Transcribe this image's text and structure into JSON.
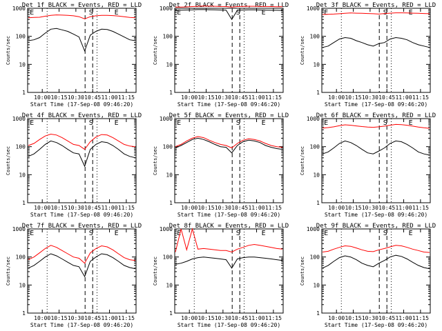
{
  "chart_data": [
    {
      "type": "line",
      "title": "Det 1f BLACK = Events, RED = LLD",
      "xlabel": "Start Time (17-Sep-08 09:46:20)",
      "ylabel": "Counts/sec",
      "yscale": "log",
      "ylim": [
        1,
        1000
      ],
      "xticks": [
        "10:00",
        "10:15",
        "10:30",
        "10:45",
        "11:00",
        "11:15"
      ],
      "markers": [
        "E",
        "S",
        "E"
      ],
      "series": [
        {
          "name": "Events",
          "color": "#000000",
          "values": [
            70,
            75,
            90,
            130,
            180,
            190,
            170,
            150,
            120,
            95,
            30,
            110,
            150,
            180,
            175,
            150,
            120,
            95,
            75,
            70
          ]
        },
        {
          "name": "LLD",
          "color": "#ff0000",
          "values": [
            460,
            470,
            480,
            520,
            560,
            580,
            570,
            560,
            540,
            500,
            420,
            500,
            540,
            560,
            560,
            550,
            530,
            500,
            470,
            460
          ]
        }
      ]
    },
    {
      "type": "line",
      "title": "Det 2f BLACK = Events, RED = LLD",
      "xlabel": "Start Time (17-Sep-08 09:46:20)",
      "ylabel": "Counts/sec",
      "yscale": "log",
      "ylim": [
        1,
        1000
      ],
      "xticks": [
        "10:00",
        "10:15",
        "10:30",
        "10:45",
        "11:00",
        "11:15"
      ],
      "markers": [
        "E",
        "S",
        "E"
      ],
      "series": [
        {
          "name": "Events",
          "color": "#000000",
          "values": [
            850,
            860,
            870,
            880,
            900,
            900,
            890,
            880,
            870,
            860,
            400,
            850,
            870,
            880,
            880,
            870,
            860,
            850,
            850,
            840
          ]
        },
        {
          "name": "LLD",
          "color": "#ff0000",
          "values": [
            1100,
            1110,
            1120,
            1150,
            1180,
            1200,
            1190,
            1180,
            1160,
            1150,
            1100,
            1150,
            1170,
            1180,
            1180,
            1170,
            1160,
            1150,
            1140,
            1130
          ]
        }
      ]
    },
    {
      "type": "line",
      "title": "Det 3f BLACK = Events, RED = LLD",
      "xlabel": "Start Time (17-Sep-08 09:46:20)",
      "ylabel": "Counts/sec",
      "yscale": "log",
      "ylim": [
        1,
        1000
      ],
      "xticks": [
        "10:00",
        "10:15",
        "10:30",
        "10:45",
        "11:00",
        "11:15"
      ],
      "markers": [
        "E",
        "S",
        "E"
      ],
      "series": [
        {
          "name": "Events",
          "color": "#000000",
          "values": [
            40,
            45,
            60,
            80,
            90,
            85,
            70,
            60,
            50,
            45,
            55,
            60,
            80,
            90,
            85,
            75,
            60,
            50,
            45,
            40
          ]
        },
        {
          "name": "LLD",
          "color": "#ff0000",
          "values": [
            600,
            610,
            620,
            640,
            660,
            680,
            670,
            660,
            650,
            640,
            620,
            650,
            670,
            690,
            690,
            680,
            670,
            660,
            650,
            640
          ]
        }
      ]
    },
    {
      "type": "line",
      "title": "Det 4f BLACK = Events, RED = LLD",
      "xlabel": "Start Time (17-Sep-08 09:46:20)",
      "ylabel": "Counts/sec",
      "yscale": "log",
      "ylim": [
        1,
        1000
      ],
      "xticks": [
        "10:00",
        "10:15",
        "10:30",
        "10:45",
        "11:00",
        "11:15"
      ],
      "markers": [
        "E",
        "S",
        "E"
      ],
      "series": [
        {
          "name": "Events",
          "color": "#000000",
          "values": [
            45,
            55,
            80,
            120,
            160,
            140,
            110,
            80,
            60,
            55,
            20,
            80,
            120,
            150,
            140,
            110,
            80,
            55,
            45,
            40
          ]
        },
        {
          "name": "LLD",
          "color": "#ff0000",
          "values": [
            110,
            130,
            180,
            240,
            280,
            260,
            210,
            160,
            120,
            110,
            80,
            150,
            220,
            270,
            260,
            210,
            160,
            120,
            105,
            100
          ]
        }
      ]
    },
    {
      "type": "line",
      "title": "Det 5f BLACK = Events, RED = LLD",
      "xlabel": "Start Time (17-Sep-08 09:46:20)",
      "ylabel": "Counts/sec",
      "yscale": "log",
      "ylim": [
        1,
        1000
      ],
      "xticks": [
        "10:00",
        "10:15",
        "10:30",
        "10:45",
        "11:00",
        "11:15"
      ],
      "markers": [
        "E",
        "S",
        "E"
      ],
      "series": [
        {
          "name": "Events",
          "color": "#000000",
          "values": [
            90,
            110,
            140,
            180,
            200,
            180,
            150,
            120,
            100,
            95,
            60,
            110,
            150,
            170,
            160,
            140,
            110,
            95,
            85,
            80
          ]
        },
        {
          "name": "LLD",
          "color": "#ff0000",
          "values": [
            100,
            120,
            160,
            200,
            230,
            210,
            170,
            140,
            120,
            110,
            90,
            130,
            170,
            190,
            180,
            160,
            130,
            110,
            100,
            95
          ]
        }
      ]
    },
    {
      "type": "line",
      "title": "Det 6f BLACK = Events, RED = LLD",
      "xlabel": "Start Time (17-Sep-08 09:46:20)",
      "ylabel": "Counts/sec",
      "yscale": "log",
      "ylim": [
        1,
        1000
      ],
      "xticks": [
        "10:00",
        "10:15",
        "10:30",
        "10:45",
        "11:00",
        "11:15"
      ],
      "markers": [
        "E",
        "S",
        "E"
      ],
      "series": [
        {
          "name": "Events",
          "color": "#000000",
          "values": [
            55,
            65,
            90,
            130,
            160,
            140,
            110,
            80,
            60,
            55,
            70,
            90,
            130,
            160,
            150,
            120,
            90,
            65,
            55,
            50
          ]
        },
        {
          "name": "LLD",
          "color": "#ff0000",
          "values": [
            460,
            480,
            510,
            560,
            600,
            580,
            550,
            520,
            500,
            490,
            510,
            540,
            580,
            620,
            610,
            580,
            540,
            500,
            470,
            450
          ]
        }
      ]
    },
    {
      "type": "line",
      "title": "Det 7f BLACK = Events, RED = LLD",
      "xlabel": "Start Time (17-Sep-08 09:46:20)",
      "ylabel": "Counts/sec",
      "yscale": "log",
      "ylim": [
        1,
        1000
      ],
      "xticks": [
        "10:00",
        "10:15",
        "10:30",
        "10:45",
        "11:00",
        "11:15"
      ],
      "markers": [
        "E",
        "S",
        "E"
      ],
      "series": [
        {
          "name": "Events",
          "color": "#000000",
          "values": [
            40,
            50,
            70,
            100,
            130,
            110,
            85,
            65,
            50,
            45,
            20,
            70,
            100,
            130,
            120,
            95,
            70,
            50,
            42,
            38
          ]
        },
        {
          "name": "LLD",
          "color": "#ff0000",
          "values": [
            80,
            100,
            140,
            200,
            260,
            220,
            170,
            130,
            100,
            90,
            60,
            140,
            200,
            250,
            230,
            180,
            130,
            95,
            80,
            75
          ]
        }
      ]
    },
    {
      "type": "line",
      "title": "Det 8f BLACK = Events, RED = LLD",
      "xlabel": "Start Time (17-Sep-08 09:46:20)",
      "ylabel": "Counts/sec",
      "yscale": "log",
      "ylim": [
        1,
        1000
      ],
      "xticks": [
        "10:00",
        "10:15",
        "10:30",
        "10:45",
        "11:00",
        "11:15"
      ],
      "markers": [
        "E",
        "S",
        "E"
      ],
      "series": [
        {
          "name": "Events",
          "color": "#000000",
          "values": [
            55,
            60,
            70,
            85,
            95,
            100,
            95,
            90,
            85,
            80,
            40,
            85,
            95,
            100,
            100,
            95,
            90,
            85,
            80,
            75
          ]
        },
        {
          "name": "LLD",
          "color": "#ff0000",
          "values": [
            150,
            1000,
            180,
            1000,
            190,
            200,
            190,
            180,
            170,
            170,
            150,
            190,
            220,
            260,
            280,
            260,
            240,
            220,
            200,
            190
          ]
        }
      ]
    },
    {
      "type": "line",
      "title": "Det 9f BLACK = Events, RED = LLD",
      "xlabel": "Start Time (17-Sep-08 09:46:20)",
      "ylabel": "Counts/sec",
      "yscale": "log",
      "ylim": [
        1,
        1000
      ],
      "xticks": [
        "10:00",
        "10:15",
        "10:30",
        "10:45",
        "11:00",
        "11:15"
      ],
      "markers": [
        "E",
        "S",
        "E"
      ],
      "series": [
        {
          "name": "Events",
          "color": "#000000",
          "values": [
            40,
            50,
            70,
            95,
            110,
            100,
            80,
            60,
            50,
            45,
            60,
            75,
            100,
            115,
            105,
            85,
            65,
            50,
            42,
            38
          ]
        },
        {
          "name": "LLD",
          "color": "#ff0000",
          "values": [
            150,
            160,
            190,
            220,
            250,
            240,
            210,
            180,
            160,
            155,
            180,
            200,
            230,
            260,
            250,
            220,
            190,
            170,
            150,
            145
          ]
        }
      ]
    }
  ]
}
